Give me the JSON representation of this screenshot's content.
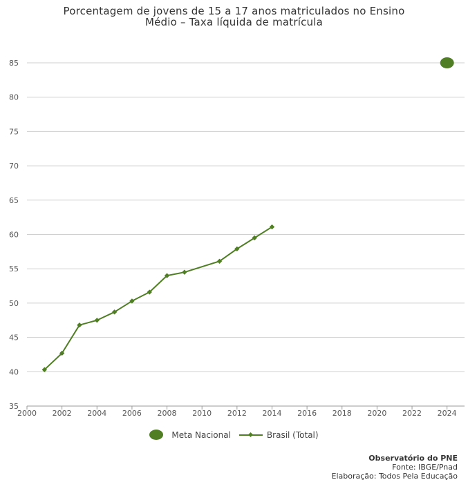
{
  "chart_data": {
    "type": "line",
    "title_line1": "Porcentagem de jovens de 15 a 17 anos matriculados no Ensino",
    "title_line2": "Médio – Taxa líquida de matrícula",
    "xlabel": "",
    "ylabel": "",
    "xlim": [
      2000,
      2025
    ],
    "ylim": [
      35,
      88
    ],
    "x_ticks": [
      "2000",
      "2002",
      "2004",
      "2006",
      "2008",
      "2010",
      "2012",
      "2014",
      "2016",
      "2018",
      "2020",
      "2022",
      "2024"
    ],
    "y_ticks": [
      "35",
      "40",
      "45",
      "50",
      "55",
      "60",
      "65",
      "70",
      "75",
      "80",
      "85"
    ],
    "series": [
      {
        "name": "Brasil (Total)",
        "marker": "diamond",
        "color": "#4f7e24",
        "x": [
          2001,
          2002,
          2003,
          2004,
          2005,
          2006,
          2007,
          2008,
          2009,
          2011,
          2012,
          2013,
          2014
        ],
        "values": [
          40.3,
          42.7,
          46.8,
          47.5,
          48.7,
          50.3,
          51.6,
          54.0,
          54.5,
          56.1,
          57.9,
          59.5,
          61.1
        ]
      },
      {
        "name": "Meta Nacional",
        "marker": "circle",
        "color": "#4f7e24",
        "x": [
          2024
        ],
        "values": [
          85
        ]
      }
    ],
    "legend": {
      "position": "bottom-center",
      "items": [
        "Meta Nacional",
        "Brasil (Total)"
      ]
    }
  },
  "credits": {
    "org": "Observatório do PNE",
    "source": "Fonte: IBGE/Pnad",
    "elaboration": "Elaboração: Todos Pela Educação"
  }
}
